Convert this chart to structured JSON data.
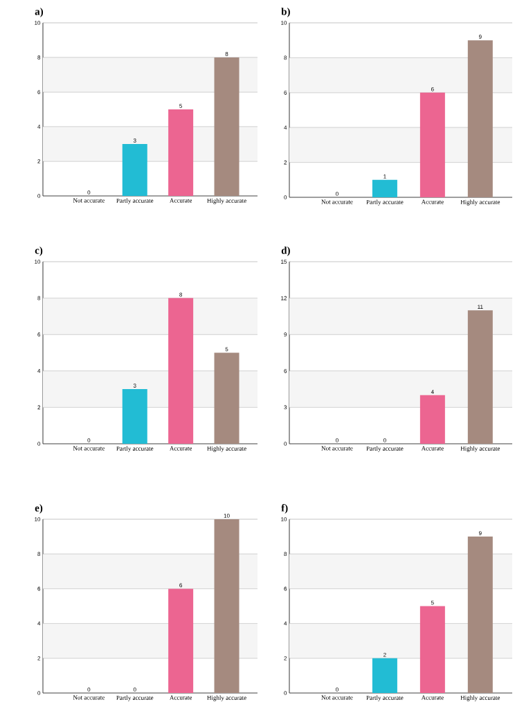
{
  "chart_data": [
    {
      "type": "bar",
      "title": "a)",
      "categories": [
        "Not accurate",
        "Partly accurate",
        "Accurate",
        "Highly accurate"
      ],
      "values": [
        0,
        3,
        5,
        8
      ],
      "colors": [
        "#f0a030",
        "#22bcd4",
        "#ec6591",
        "#a58a7f"
      ],
      "ylim": [
        0,
        10
      ],
      "yticks": [
        0,
        2,
        4,
        6,
        8,
        10
      ],
      "grid": "y",
      "data_labels": true
    },
    {
      "type": "bar",
      "title": "b)",
      "categories": [
        "Not accurate",
        "Partly accurate",
        "Accurate",
        "Highly accurate"
      ],
      "values": [
        0,
        1,
        6,
        9
      ],
      "colors": [
        "#f0a030",
        "#22bcd4",
        "#ec6591",
        "#a58a7f"
      ],
      "ylim": [
        0,
        10
      ],
      "yticks": [
        0,
        2,
        4,
        6,
        8,
        10
      ],
      "grid": "y",
      "data_labels": true
    },
    {
      "type": "bar",
      "title": "c)",
      "categories": [
        "Not accurate",
        "Partly accurate",
        "Accurate",
        "Highly accurate"
      ],
      "values": [
        0,
        3,
        8,
        5
      ],
      "colors": [
        "#f0a030",
        "#22bcd4",
        "#ec6591",
        "#a58a7f"
      ],
      "ylim": [
        0,
        10
      ],
      "yticks": [
        0,
        2,
        4,
        6,
        8,
        10
      ],
      "grid": "y",
      "data_labels": true
    },
    {
      "type": "bar",
      "title": "d)",
      "categories": [
        "Not accurate",
        "Partly accurate",
        "Accurate",
        "Highly accurate"
      ],
      "values": [
        0,
        0,
        4,
        11
      ],
      "colors": [
        "#f0a030",
        "#22bcd4",
        "#ec6591",
        "#a58a7f"
      ],
      "ylim": [
        0,
        15
      ],
      "yticks": [
        0,
        3,
        6,
        9,
        12,
        15
      ],
      "grid": "y",
      "data_labels": true
    },
    {
      "type": "bar",
      "title": "e)",
      "categories": [
        "Not accurate",
        "Partly accurate",
        "Accurate",
        "Highly accurate"
      ],
      "values": [
        0,
        0,
        6,
        10
      ],
      "colors": [
        "#f0a030",
        "#22bcd4",
        "#ec6591",
        "#a58a7f"
      ],
      "ylim": [
        0,
        10
      ],
      "yticks": [
        0,
        2,
        4,
        6,
        8,
        10
      ],
      "grid": "y",
      "data_labels": true
    },
    {
      "type": "bar",
      "title": "f)",
      "categories": [
        "Not accurate",
        "Partly accurate",
        "Accurate",
        "Highly accurate"
      ],
      "values": [
        0,
        2,
        5,
        9
      ],
      "colors": [
        "#f0a030",
        "#22bcd4",
        "#ec6591",
        "#a58a7f"
      ],
      "ylim": [
        0,
        10
      ],
      "yticks": [
        0,
        2,
        4,
        6,
        8,
        10
      ],
      "grid": "y",
      "data_labels": true
    }
  ]
}
